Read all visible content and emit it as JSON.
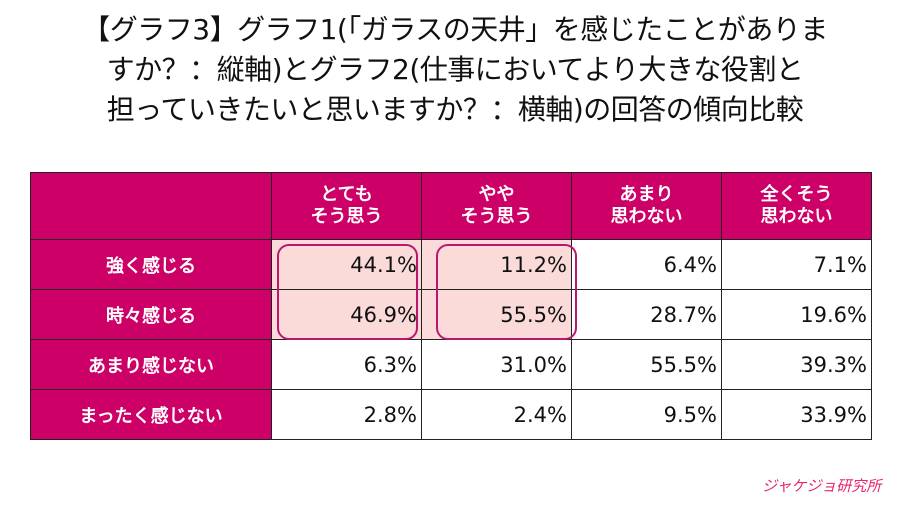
{
  "title": {
    "lines": [
      "【グラフ3】グラフ1(「ガラスの天井」を感じたことがありま",
      "すか？：縦軸)とグラフ2(仕事においてより大きな役割と",
      "担っていきたいと思いますか？：横軸)の回答の傾向比較"
    ]
  },
  "chart_data": {
    "type": "table",
    "columns": [
      "とても\nそう思う",
      "やや\nそう思う",
      "あまり\n思わない",
      "全くそう\n思わない"
    ],
    "rows": [
      {
        "label": "強く感じる",
        "values": [
          "44.1%",
          "11.2%",
          "6.4%",
          "7.1%"
        ]
      },
      {
        "label": "時々感じる",
        "values": [
          "46.9%",
          "55.5%",
          "28.7%",
          "19.6%"
        ]
      },
      {
        "label": "あまり感じない",
        "values": [
          "6.3%",
          "31.0%",
          "55.5%",
          "39.3%"
        ]
      },
      {
        "label": "まったく感じない",
        "values": [
          "2.8%",
          "2.4%",
          "9.5%",
          "33.9%"
        ]
      }
    ],
    "highlight": {
      "rows": [
        0,
        1
      ],
      "columns": [
        0,
        1
      ]
    }
  },
  "colors": {
    "header": "#cc0066",
    "highlight_fill": "#fbdada",
    "highlight_border": "#b8186e",
    "logo": "#e6266e"
  },
  "logo": {
    "text": "ジャケジョ研究所"
  }
}
